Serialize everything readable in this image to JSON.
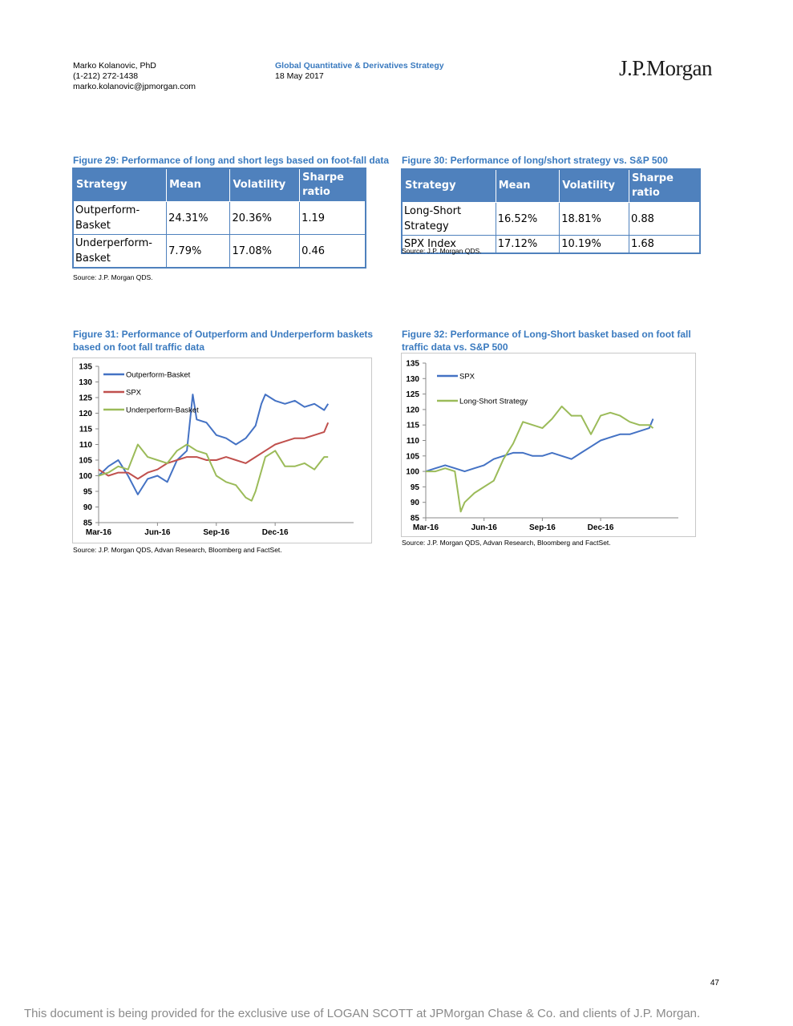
{
  "header": {
    "author_name": "Marko Kolanovic, PhD",
    "author_phone": "(1-212) 272-1438",
    "author_email": "marko.kolanovic@jpmorgan.com",
    "strategy": "Global Quantitative & Derivatives Strategy",
    "date": "18 May 2017",
    "logo_text": "J.P.Morgan"
  },
  "fig29": {
    "title": "Figure 29: Performance of long and short legs based on foot-fall data",
    "headers": [
      "Strategy",
      "Mean",
      "Volatility",
      "Sharpe ratio"
    ],
    "rows": [
      [
        "Outperform-Basket",
        "24.31%",
        "20.36%",
        "1.19"
      ],
      [
        "Underperform-Basket",
        "7.79%",
        "17.08%",
        "0.46"
      ]
    ],
    "source": "Source: J.P. Morgan QDS."
  },
  "fig30": {
    "title": "Figure 30: Performance of long/short strategy vs. S&P 500",
    "headers": [
      "Strategy",
      "Mean",
      "Volatility",
      "Sharpe ratio"
    ],
    "rows": [
      [
        "Long-Short Strategy",
        "16.52%",
        "18.81%",
        "0.88"
      ],
      [
        "SPX Index",
        "17.12%",
        "10.19%",
        "1.68"
      ]
    ],
    "source": "Source: J.P. Morgan QDS."
  },
  "fig31": {
    "title_line1": "Figure 31: Performance of Outperform and Underperform baskets",
    "title_line2": "based on foot fall traffic data",
    "source": "Source: J.P. Morgan QDS, Advan Research, Bloomberg and FactSet."
  },
  "fig32": {
    "title_line1": "Figure 32: Performance of Long-Short basket based on foot fall",
    "title_line2": "traffic data vs. S&P 500",
    "source": "Source: J.P. Morgan QDS, Advan Research, Bloomberg and FactSet."
  },
  "chart_data": [
    {
      "type": "line",
      "title": "",
      "ylim": [
        85,
        135
      ],
      "yticks": [
        85,
        90,
        95,
        100,
        105,
        110,
        115,
        120,
        125,
        130,
        135
      ],
      "xlim": [
        0,
        13
      ],
      "xticks": [
        {
          "pos": 0,
          "label": "Mar-16"
        },
        {
          "pos": 3,
          "label": "Jun-16"
        },
        {
          "pos": 6,
          "label": "Sep-16"
        },
        {
          "pos": 9,
          "label": "Dec-16"
        }
      ],
      "legend_position": "top-left",
      "series": [
        {
          "name": "Outperform-Basket",
          "color": "#4472c4",
          "x": [
            0,
            0.5,
            1,
            1.5,
            2,
            2.5,
            3,
            3.5,
            4,
            4.5,
            4.8,
            5,
            5.5,
            6,
            6.5,
            7,
            7.5,
            8,
            8.3,
            8.5,
            9,
            9.5,
            10,
            10.5,
            11,
            11.5,
            11.7
          ],
          "y": [
            100,
            103,
            105,
            100,
            94,
            99,
            100,
            98,
            105,
            108,
            126,
            118,
            117,
            113,
            112,
            110,
            112,
            116,
            123,
            126,
            124,
            123,
            124,
            122,
            123,
            121,
            123
          ]
        },
        {
          "name": "SPX",
          "color": "#c0504d",
          "x": [
            0,
            0.5,
            1,
            1.5,
            2,
            2.5,
            3,
            3.5,
            4,
            4.5,
            5,
            5.5,
            6,
            6.5,
            7,
            7.5,
            8,
            8.5,
            9,
            9.5,
            10,
            10.5,
            11,
            11.5,
            11.7
          ],
          "y": [
            102,
            100,
            101,
            101,
            99,
            101,
            102,
            104,
            105,
            106,
            106,
            105,
            105,
            106,
            105,
            104,
            106,
            108,
            110,
            111,
            112,
            112,
            113,
            114,
            117
          ]
        },
        {
          "name": "Underperform-Basket",
          "color": "#9bbb59",
          "x": [
            0,
            0.5,
            1,
            1.5,
            2,
            2.5,
            3,
            3.5,
            4,
            4.5,
            5,
            5.5,
            6,
            6.5,
            7,
            7.5,
            7.8,
            8,
            8.5,
            9,
            9.5,
            10,
            10.5,
            11,
            11.5,
            11.7
          ],
          "y": [
            100,
            101,
            103,
            102,
            110,
            106,
            105,
            104,
            108,
            110,
            108,
            107,
            100,
            98,
            97,
            93,
            92,
            95,
            106,
            108,
            103,
            103,
            104,
            102,
            106,
            106
          ]
        }
      ]
    },
    {
      "type": "line",
      "title": "",
      "ylim": [
        85,
        135
      ],
      "yticks": [
        85,
        90,
        95,
        100,
        105,
        110,
        115,
        120,
        125,
        130,
        135
      ],
      "xlim": [
        0,
        13
      ],
      "xticks": [
        {
          "pos": 0,
          "label": "Mar-16"
        },
        {
          "pos": 3,
          "label": "Jun-16"
        },
        {
          "pos": 6,
          "label": "Sep-16"
        },
        {
          "pos": 9,
          "label": "Dec-16"
        }
      ],
      "legend_position": "top-left",
      "series": [
        {
          "name": "SPX",
          "color": "#4472c4",
          "x": [
            0,
            0.5,
            1,
            1.5,
            2,
            2.5,
            3,
            3.5,
            4,
            4.5,
            5,
            5.5,
            6,
            6.5,
            7,
            7.5,
            8,
            8.5,
            9,
            9.5,
            10,
            10.5,
            11,
            11.5,
            11.7
          ],
          "y": [
            100,
            101,
            102,
            101,
            100,
            101,
            102,
            104,
            105,
            106,
            106,
            105,
            105,
            106,
            105,
            104,
            106,
            108,
            110,
            111,
            112,
            112,
            113,
            114,
            117
          ]
        },
        {
          "name": "Long-Short Strategy",
          "color": "#9bbb59",
          "x": [
            0,
            0.5,
            1,
            1.5,
            1.8,
            2,
            2.5,
            3,
            3.5,
            4,
            4.5,
            5,
            5.5,
            6,
            6.5,
            7,
            7.5,
            8,
            8.5,
            9,
            9.5,
            10,
            10.5,
            11,
            11.5,
            11.7
          ],
          "y": [
            100,
            100,
            101,
            100,
            87,
            90,
            93,
            95,
            97,
            104,
            109,
            116,
            115,
            114,
            117,
            121,
            118,
            118,
            112,
            118,
            119,
            118,
            116,
            115,
            115,
            114
          ]
        }
      ]
    }
  ],
  "page_number": "47",
  "footer_text": "This document is being provided for the exclusive use of LOGAN SCOTT at JPMorgan Chase & Co. and clients of J.P. Morgan."
}
